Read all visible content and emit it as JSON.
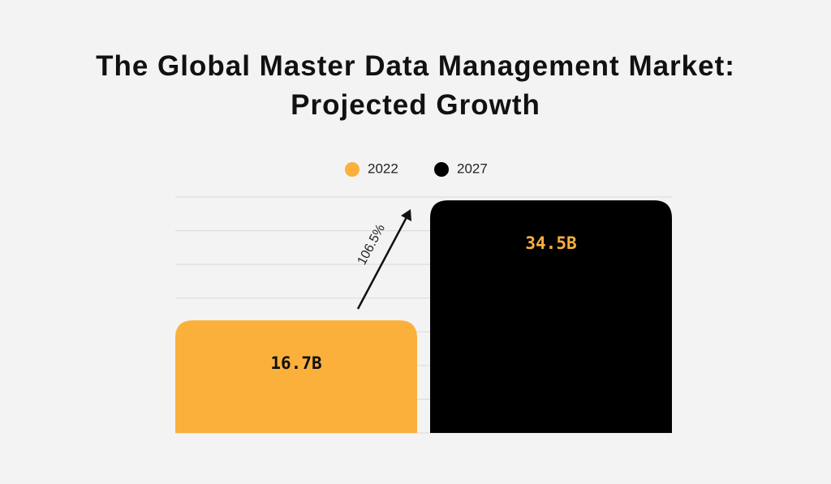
{
  "chart_data": {
    "type": "bar",
    "title": "The Global Master Data Management Market: Projected Growth",
    "categories": [
      null,
      null
    ],
    "series": [
      {
        "name": "2022",
        "color": "#fbb03b",
        "label_color": "#111111",
        "values": [
          16.7,
          null
        ],
        "value_labels": [
          "16.7B",
          null
        ]
      },
      {
        "name": "2027",
        "color": "#000000",
        "label_color": "#fbb03b",
        "values": [
          null,
          34.5
        ],
        "value_labels": [
          null,
          "34.5B"
        ]
      }
    ],
    "annotation": "106.5%",
    "ylim": [
      0,
      35
    ],
    "yticks": [
      0,
      5,
      10,
      15,
      20,
      25,
      30,
      35
    ],
    "ytick_labels": false,
    "grid": true
  }
}
